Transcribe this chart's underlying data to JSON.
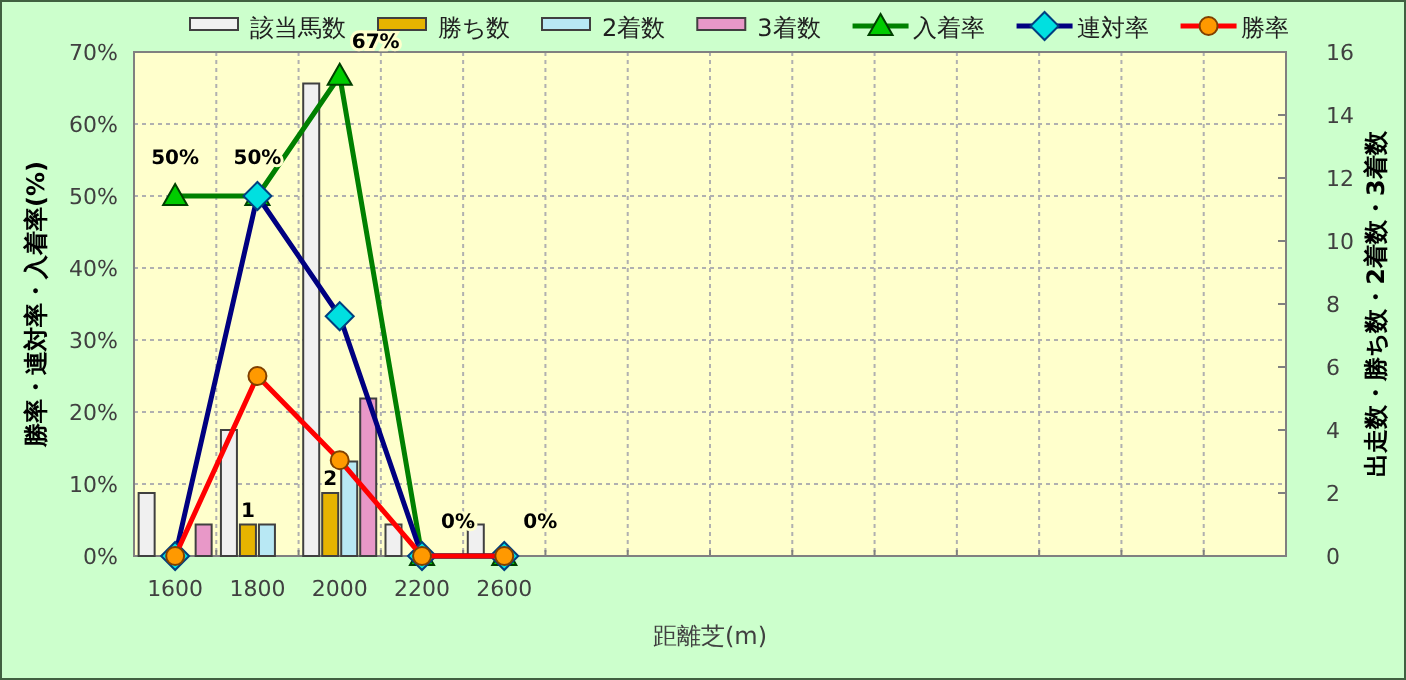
{
  "chart_data": {
    "type": "bar",
    "xlabel": "距離芝(m)",
    "ylabel": "勝率・連対率・入着率(%)",
    "y2label": "出走数・勝ち数・2着数・3着数",
    "categories": [
      "1600",
      "1800",
      "2000",
      "2200",
      "2600",
      null,
      null,
      null,
      null,
      null,
      null,
      null,
      null,
      null
    ],
    "ylim": [
      0,
      70
    ],
    "yticks": [
      {
        "value": 0,
        "label": "0%"
      },
      {
        "value": 10,
        "label": "10%"
      },
      {
        "value": 20,
        "label": "20%"
      },
      {
        "value": 30,
        "label": "30%"
      },
      {
        "value": 40,
        "label": "40%"
      },
      {
        "value": 50,
        "label": "50%"
      },
      {
        "value": 60,
        "label": "60%"
      },
      {
        "value": 70,
        "label": "70%"
      }
    ],
    "y2lim": [
      0,
      16
    ],
    "y2ticks": [
      0,
      2,
      4,
      6,
      8,
      10,
      12,
      14,
      16
    ],
    "grid": true,
    "legend": "top",
    "series": [
      {
        "name": "該当馬数",
        "color": "#f0f0f0",
        "axis": "y2",
        "values": [
          2,
          4,
          15,
          1,
          1,
          null,
          null,
          null,
          null,
          null,
          null,
          null,
          null,
          null
        ]
      },
      {
        "name": "勝ち数",
        "color": "#e6b400",
        "axis": "y2",
        "values": [
          0,
          1,
          2,
          0,
          0,
          null,
          null,
          null,
          null,
          null,
          null,
          null,
          null,
          null
        ],
        "value_labels": [
          null,
          "1",
          "2",
          null,
          null,
          null,
          null,
          null,
          null,
          null,
          null,
          null,
          null,
          null
        ]
      },
      {
        "name": "2着数",
        "color": "#b8e8f4",
        "axis": "y2",
        "values": [
          0,
          1,
          3,
          0,
          0,
          null,
          null,
          null,
          null,
          null,
          null,
          null,
          null,
          null
        ]
      },
      {
        "name": "3着数",
        "color": "#e898c8",
        "axis": "y2",
        "values": [
          1,
          0,
          5,
          0,
          0,
          null,
          null,
          null,
          null,
          null,
          null,
          null,
          null,
          null
        ]
      },
      {
        "name": "入着率",
        "type": "line",
        "color": "#008000",
        "marker": "triangle",
        "values": [
          50,
          50,
          66.7,
          0,
          0,
          null,
          null,
          null,
          null,
          null,
          null,
          null,
          null,
          null
        ],
        "value_labels": [
          "50%",
          "50%",
          "67%",
          "0%",
          "0%",
          null,
          null,
          null,
          null,
          null,
          null,
          null,
          null,
          null
        ]
      },
      {
        "name": "連対率",
        "type": "line",
        "color": "#000080",
        "marker": "diamond",
        "values": [
          0,
          50,
          33.3,
          0,
          0,
          null,
          null,
          null,
          null,
          null,
          null,
          null,
          null,
          null
        ]
      },
      {
        "name": "勝率",
        "type": "line",
        "color": "#ff0000",
        "marker": "circle",
        "values": [
          0,
          25,
          13.3,
          0,
          0,
          null,
          null,
          null,
          null,
          null,
          null,
          null,
          null,
          null
        ]
      }
    ]
  }
}
